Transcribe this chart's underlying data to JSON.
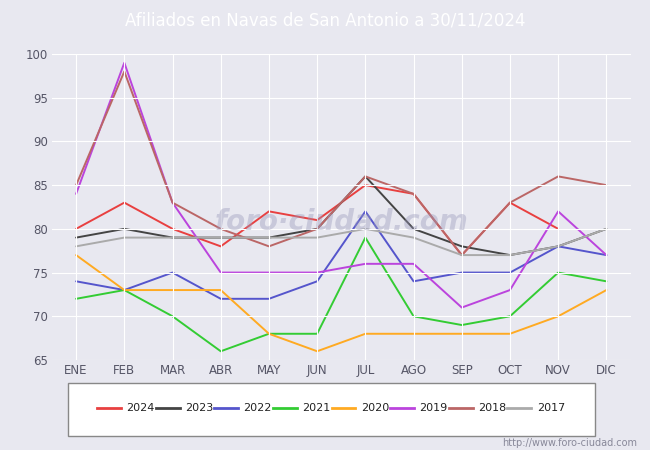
{
  "title": "Afiliados en Navas de San Antonio a 30/11/2024",
  "header_bg": "#5b7fc4",
  "months": [
    "ENE",
    "FEB",
    "MAR",
    "ABR",
    "MAY",
    "JUN",
    "JUL",
    "AGO",
    "SEP",
    "OCT",
    "NOV",
    "DIC"
  ],
  "ylim": [
    65,
    100
  ],
  "yticks": [
    65,
    70,
    75,
    80,
    85,
    90,
    95,
    100
  ],
  "series": {
    "2024": {
      "color": "#e84040",
      "values": [
        80,
        83,
        80,
        78,
        82,
        81,
        85,
        84,
        77,
        83,
        80,
        null
      ],
      "linewidth": 1.4
    },
    "2023": {
      "color": "#444444",
      "values": [
        79,
        80,
        79,
        79,
        79,
        80,
        86,
        80,
        78,
        77,
        78,
        80
      ],
      "linewidth": 1.4
    },
    "2022": {
      "color": "#5555cc",
      "values": [
        74,
        73,
        75,
        72,
        72,
        74,
        82,
        74,
        75,
        75,
        78,
        77
      ],
      "linewidth": 1.4
    },
    "2021": {
      "color": "#33cc33",
      "values": [
        72,
        73,
        70,
        66,
        68,
        68,
        79,
        70,
        69,
        70,
        75,
        74
      ],
      "linewidth": 1.4
    },
    "2020": {
      "color": "#ffaa22",
      "values": [
        77,
        73,
        73,
        73,
        68,
        66,
        68,
        68,
        68,
        68,
        70,
        73
      ],
      "linewidth": 1.4
    },
    "2019": {
      "color": "#bb44dd",
      "values": [
        84,
        99,
        83,
        75,
        75,
        75,
        76,
        76,
        71,
        73,
        82,
        77
      ],
      "linewidth": 1.4
    },
    "2018": {
      "color": "#bb6666",
      "values": [
        85,
        98,
        83,
        80,
        78,
        80,
        86,
        84,
        77,
        83,
        86,
        85
      ],
      "linewidth": 1.4
    },
    "2017": {
      "color": "#aaaaaa",
      "values": [
        78,
        79,
        79,
        79,
        79,
        79,
        80,
        79,
        77,
        77,
        78,
        80
      ],
      "linewidth": 1.4
    }
  },
  "legend_order": [
    "2024",
    "2023",
    "2022",
    "2021",
    "2020",
    "2019",
    "2018",
    "2017"
  ],
  "watermark": "http://www.foro-ciudad.com",
  "bg_color": "#e8e8f0",
  "plot_bg": "#e8e8f0",
  "grid_color": "#ffffff",
  "footer_url_color": "#888899"
}
